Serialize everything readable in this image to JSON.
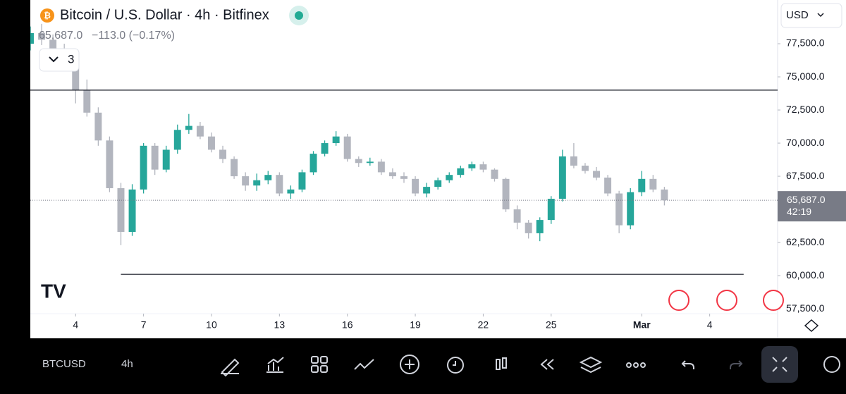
{
  "header": {
    "title": "Bitcoin / U.S. Dollar · 4h · Bitfinex",
    "quote": "65,687.0",
    "change": "−113.0 (−0.17%)",
    "indicator_count": "3",
    "currency": "USD"
  },
  "chart_data": {
    "type": "candlestick",
    "open": [
      77500,
      78300,
      77800,
      77000,
      76500,
      74000,
      72300,
      70200,
      66600,
      63300,
      66500,
      69800,
      68000,
      69500,
      71000,
      71300,
      70500,
      69500,
      68800,
      67500,
      66800,
      67200,
      67600,
      66200,
      66500,
      67800,
      69200,
      70000,
      70500,
      68800,
      68500,
      68600,
      67800,
      67500,
      67300,
      66200,
      66700,
      67200,
      67600,
      68100,
      68400,
      68000,
      67300,
      65000,
      64000,
      63200,
      64200,
      65800,
      69000,
      68300,
      67900,
      67400,
      66200,
      63800,
      66300,
      67300,
      66500
    ],
    "high": [
      78800,
      79000,
      78200,
      77500,
      76800,
      74800,
      72700,
      70500,
      67000,
      66900,
      70000,
      70000,
      69800,
      71400,
      72200,
      71600,
      70800,
      69800,
      69000,
      67800,
      67700,
      67900,
      67800,
      66800,
      68000,
      69400,
      70200,
      70900,
      70700,
      69000,
      68900,
      68800,
      68100,
      67800,
      67500,
      67000,
      67400,
      67800,
      68300,
      68600,
      68600,
      68100,
      67400,
      65300,
      64200,
      64400,
      66000,
      69500,
      70000,
      68500,
      68200,
      67600,
      66400,
      66600,
      67900,
      67600,
      66700
    ],
    "low": [
      77000,
      77400,
      76700,
      75800,
      73000,
      72000,
      69800,
      66300,
      62300,
      63000,
      66200,
      67600,
      67800,
      69200,
      70700,
      70300,
      69300,
      68500,
      67300,
      66400,
      66400,
      66900,
      66000,
      65800,
      66300,
      67600,
      69000,
      69800,
      68600,
      68200,
      68300,
      67600,
      67300,
      67000,
      66000,
      65900,
      66500,
      67000,
      67400,
      67900,
      67800,
      67100,
      64800,
      63500,
      62800,
      62600,
      63900,
      65600,
      68100,
      67700,
      67200,
      66000,
      63200,
      63500,
      66000,
      66300,
      65300
    ],
    "close": [
      78300,
      77800,
      77000,
      76500,
      74000,
      72300,
      70200,
      66600,
      63300,
      66500,
      69800,
      68000,
      69500,
      71000,
      71300,
      70500,
      69500,
      68800,
      67500,
      66800,
      67200,
      67600,
      66200,
      66500,
      67800,
      69200,
      70000,
      70500,
      68800,
      68500,
      68600,
      67800,
      67500,
      67300,
      66200,
      66700,
      67200,
      67600,
      68100,
      68400,
      68000,
      67300,
      65000,
      64000,
      63200,
      64200,
      65800,
      69000,
      68300,
      67900,
      67400,
      66200,
      63800,
      66300,
      67300,
      66500,
      65687
    ],
    "up_color": "#26a69a",
    "down_color": "#b2b5be",
    "xlim": [
      0,
      66
    ],
    "xticks": [
      {
        "value": 4,
        "label": "4"
      },
      {
        "value": 10,
        "label": "7"
      },
      {
        "value": 16,
        "label": "10"
      },
      {
        "value": 22,
        "label": "13"
      },
      {
        "value": 28,
        "label": "16"
      },
      {
        "value": 34,
        "label": "19"
      },
      {
        "value": 40,
        "label": "22"
      },
      {
        "value": 46,
        "label": "25"
      },
      {
        "value": 54,
        "label": "Mar"
      },
      {
        "value": 60,
        "label": "4"
      }
    ],
    "ylim": [
      55270,
      80800
    ],
    "yticks": [
      {
        "value": 57500,
        "label": "57,500.0"
      },
      {
        "value": 60000,
        "label": "60,000.0"
      },
      {
        "value": 62500,
        "label": "62,500.0"
      },
      {
        "value": 65000,
        "label": "65,000.0"
      },
      {
        "value": 67500,
        "label": "67,500.0"
      },
      {
        "value": 70000,
        "label": "70,000.0"
      },
      {
        "value": 72500,
        "label": "72,500.0"
      },
      {
        "value": 75000,
        "label": "75,000.0"
      },
      {
        "value": 77500,
        "label": "77,500.0"
      }
    ],
    "hlines": [
      74000,
      60100
    ],
    "last_price_label": "65,687.0",
    "countdown": "42:19"
  },
  "watchlist": [
    {
      "symbol": "BTCUSD",
      "interval": "4h"
    }
  ]
}
